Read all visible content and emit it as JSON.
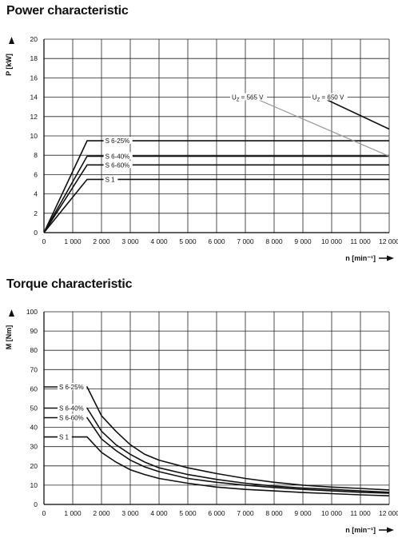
{
  "chart_data": [
    {
      "type": "line",
      "title": "Power characteristic",
      "ylabel": "P [kW]",
      "xlabel": "n [min⁻¹]",
      "x_ticks": [
        "0",
        "1000",
        "2000",
        "3000",
        "4000",
        "5000",
        "6000",
        "7000",
        "8000",
        "9000",
        "10000",
        "11000",
        "12000"
      ],
      "x_tick_labels": [
        "0",
        "1 000",
        "2 000",
        "3 000",
        "4 000",
        "5 000",
        "6 000",
        "7 000",
        "8 000",
        "9 000",
        "10 000",
        "11 000",
        "12 000"
      ],
      "y_ticks": [
        0,
        2,
        4,
        6,
        8,
        10,
        12,
        14,
        16,
        18,
        20
      ],
      "xlim": [
        0,
        12000
      ],
      "ylim": [
        0,
        20
      ],
      "grid": true,
      "series": [
        {
          "name": "S 6-25%",
          "x": [
            0,
            1500,
            12000
          ],
          "y": [
            0,
            9.5,
            9.5
          ],
          "color": "#111111"
        },
        {
          "name": "S 6-40%",
          "x": [
            0,
            1500,
            12000
          ],
          "y": [
            0,
            7.9,
            7.9
          ],
          "color": "#111111"
        },
        {
          "name": "S 6-60%",
          "x": [
            0,
            1500,
            12000
          ],
          "y": [
            0,
            7.0,
            7.0
          ],
          "color": "#111111"
        },
        {
          "name": "S 1",
          "x": [
            0,
            1500,
            12000
          ],
          "y": [
            0,
            5.5,
            5.5
          ],
          "color": "#111111"
        },
        {
          "name": "UZ = 565 V",
          "x": [
            7400,
            12000
          ],
          "y": [
            13.8,
            7.9
          ],
          "color": "#999999"
        },
        {
          "name": "UZ = 650 V",
          "x": [
            9500,
            12000
          ],
          "y": [
            14.2,
            10.7
          ],
          "color": "#111111"
        }
      ],
      "labels": [
        {
          "text": "S 6-25%",
          "x": 2100,
          "y": 9.5
        },
        {
          "text": "S 6-40%",
          "x": 2100,
          "y": 7.9
        },
        {
          "text": "S 6-60%",
          "x": 2100,
          "y": 7.0
        },
        {
          "text": "S 1",
          "x": 2100,
          "y": 5.5
        },
        {
          "text": "UZ = 565 V",
          "x": 6500,
          "y": 14.0
        },
        {
          "text": "UZ = 650 V",
          "x": 9300,
          "y": 14.0
        }
      ]
    },
    {
      "type": "line",
      "title": "Torque characteristic",
      "ylabel": "M [Nm]",
      "xlabel": "n [min⁻¹]",
      "x_ticks": [
        "0",
        "1000",
        "2000",
        "3000",
        "4000",
        "5000",
        "6000",
        "7000",
        "8000",
        "9000",
        "10000",
        "11000",
        "12000"
      ],
      "x_tick_labels": [
        "0",
        "1 000",
        "2 000",
        "3 000",
        "4 000",
        "5 000",
        "6 000",
        "7 000",
        "8 000",
        "9 000",
        "10 000",
        "11 000",
        "12 000"
      ],
      "y_ticks": [
        0,
        10,
        20,
        30,
        40,
        50,
        60,
        70,
        80,
        90,
        100
      ],
      "xlim": [
        0,
        12000
      ],
      "ylim": [
        0,
        100
      ],
      "grid": true,
      "series": [
        {
          "name": "S 6-25%",
          "x": [
            0,
            1500,
            2000,
            2500,
            3000,
            3500,
            4000,
            5000,
            6000,
            7000,
            8000,
            9000,
            10000,
            11000,
            12000
          ],
          "y": [
            61,
            61,
            46,
            38,
            31,
            26,
            23,
            19,
            16,
            13.5,
            11.5,
            10,
            9,
            8.3,
            7.5
          ],
          "color": "#111111"
        },
        {
          "name": "S 6-40%",
          "x": [
            0,
            1500,
            2000,
            2500,
            3000,
            3500,
            4000,
            5000,
            6000,
            7000,
            8000,
            9000,
            10000,
            11000,
            12000
          ],
          "y": [
            50,
            50,
            38,
            31,
            26,
            22,
            19,
            15.5,
            13,
            11,
            9.5,
            8.5,
            7.8,
            7,
            6.3
          ],
          "color": "#111111"
        },
        {
          "name": "S 6-60%",
          "x": [
            0,
            1500,
            2000,
            2500,
            3000,
            3500,
            4000,
            5000,
            6000,
            7000,
            8000,
            9000,
            10000,
            11000,
            12000
          ],
          "y": [
            45,
            45,
            34,
            28,
            23,
            19.5,
            17,
            13.5,
            11.5,
            10,
            8.8,
            7.8,
            7,
            6.3,
            5.8
          ],
          "color": "#111111"
        },
        {
          "name": "S 1",
          "x": [
            0,
            1500,
            2000,
            2500,
            3000,
            3500,
            4000,
            5000,
            6000,
            7000,
            8000,
            9000,
            10000,
            11000,
            12000
          ],
          "y": [
            35,
            35,
            27,
            22,
            18,
            15.5,
            13.5,
            11,
            9,
            7.8,
            7,
            6.2,
            5.6,
            5,
            4.5
          ],
          "color": "#111111"
        }
      ],
      "labels": [
        {
          "text": "S 6-25%",
          "x": 500,
          "y": 61
        },
        {
          "text": "S 6-40%",
          "x": 500,
          "y": 50
        },
        {
          "text": "S 6-60%",
          "x": 500,
          "y": 45
        },
        {
          "text": "S 1",
          "x": 500,
          "y": 35
        }
      ]
    }
  ]
}
